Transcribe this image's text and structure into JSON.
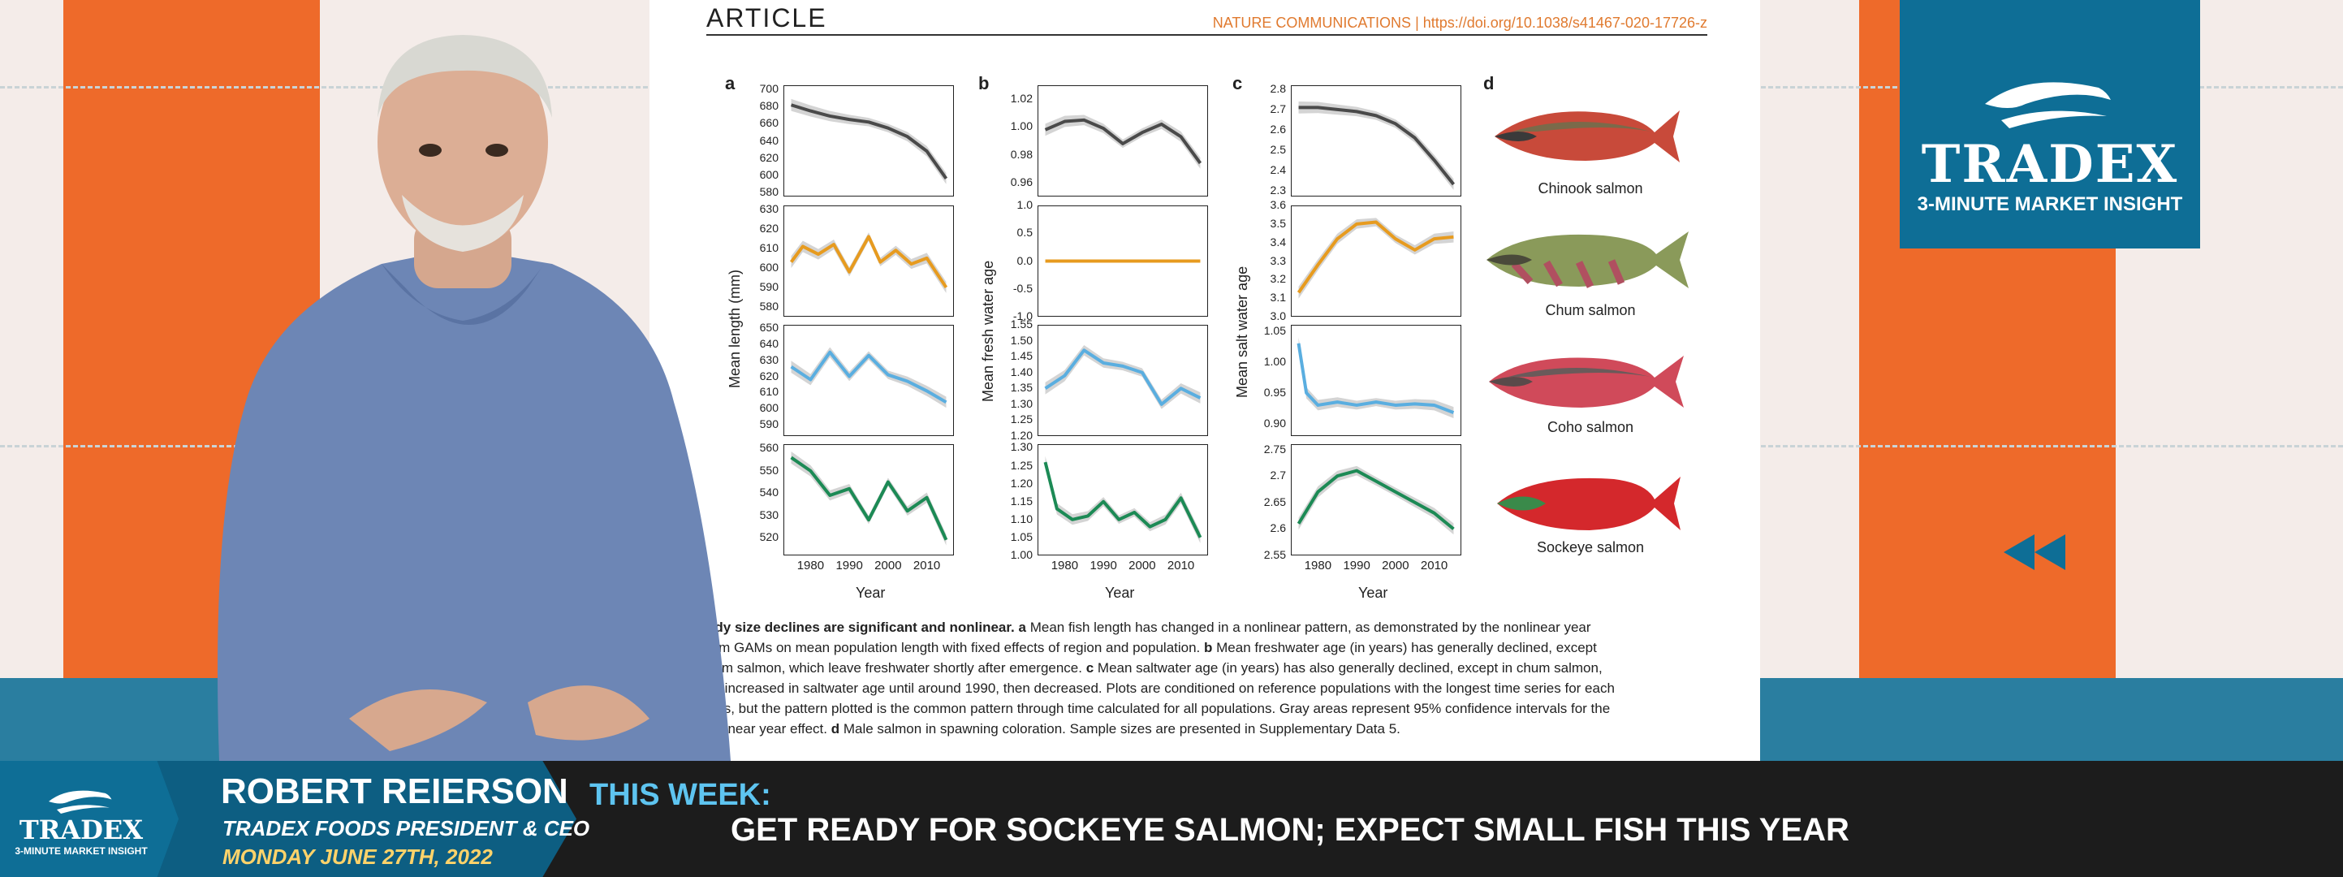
{
  "brand": {
    "name": "TRADEX",
    "tagline": "3-MINUTE MARKET INSIGHT",
    "colors": {
      "blue": "#0e6e96",
      "orange": "#ee6a2a",
      "teal": "#2a7ea0"
    }
  },
  "article": {
    "label": "ARTICLE",
    "journal": "NATURE COMMUNICATIONS | https://doi.org/10.1038/s41467-020-17726-z"
  },
  "figure": {
    "panels": {
      "a": "a",
      "b": "b",
      "c": "c",
      "d": "d"
    },
    "x_title": "Year",
    "y_titles": {
      "a": "Mean length (mm)",
      "b": "Mean fresh water age",
      "c": "Mean salt water age"
    },
    "x_ticks": [
      "1980",
      "1990",
      "2000",
      "2010"
    ],
    "fish": [
      "Chinook salmon",
      "Chum salmon",
      "Coho salmon",
      "Sockeye salmon"
    ],
    "caption_bold": "ody size declines are significant and nonlinear.",
    "caption_a": "a",
    "caption_1": " Mean fish length has changed in a nonlinear pattern, as demonstrated by the nonlinear year",
    "caption_2": "rom GAMs on mean population length with fixed effects of region and population.",
    "caption_b": "b",
    "caption_3": " Mean freshwater age (in years) has generally declined, except",
    "caption_4": "hum salmon, which leave freshwater shortly after emergence.",
    "caption_c": "c",
    "caption_5": " Mean saltwater age (in years) has also generally declined, except in chum salmon,",
    "caption_6": "ch increased in saltwater age until around 1990, then decreased. Plots are conditioned on reference populations with the longest time series for each",
    "caption_7": "cies, but the pattern plotted is the common pattern through time calculated for all populations. Gray areas represent 95% confidence intervals for the",
    "caption_8": "onlinear year effect.",
    "caption_d": "d",
    "caption_9": " Male salmon in spawning coloration. Sample sizes are presented in Supplementary Data 5."
  },
  "chart_data": [
    {
      "type": "line",
      "panel": "a",
      "row": 1,
      "color": "#4a4a4a",
      "ylim": [
        575,
        705
      ],
      "yticks": [
        580,
        600,
        620,
        640,
        660,
        680,
        700
      ],
      "x": [
        1975,
        1980,
        1985,
        1990,
        1995,
        2000,
        2005,
        2010,
        2015
      ],
      "y": [
        682,
        675,
        669,
        665,
        662,
        655,
        645,
        628,
        596
      ]
    },
    {
      "type": "line",
      "panel": "a",
      "row": 2,
      "color": "#e79b1f",
      "ylim": [
        575,
        632
      ],
      "yticks": [
        580,
        590,
        600,
        610,
        620,
        630
      ],
      "x": [
        1975,
        1978,
        1982,
        1986,
        1990,
        1995,
        1998,
        2002,
        2006,
        2010,
        2015
      ],
      "y": [
        603,
        611,
        607,
        612,
        598,
        616,
        603,
        609,
        602,
        605,
        590
      ]
    },
    {
      "type": "line",
      "panel": "a",
      "row": 3,
      "color": "#5aaee0",
      "ylim": [
        583,
        652
      ],
      "yticks": [
        590,
        600,
        610,
        620,
        630,
        640,
        650
      ],
      "x": [
        1975,
        1980,
        1985,
        1990,
        1995,
        2000,
        2005,
        2010,
        2015
      ],
      "y": [
        626,
        618,
        635,
        620,
        633,
        621,
        617,
        611,
        604
      ]
    },
    {
      "type": "line",
      "panel": "a",
      "row": 4,
      "color": "#1c8a55",
      "ylim": [
        512,
        562
      ],
      "yticks": [
        520,
        530,
        540,
        550,
        560
      ],
      "x": [
        1975,
        1980,
        1985,
        1990,
        1995,
        2000,
        2005,
        2010,
        2015
      ],
      "y": [
        556,
        550,
        539,
        542,
        528,
        545,
        532,
        538,
        519
      ]
    },
    {
      "type": "line",
      "panel": "b",
      "row": 1,
      "color": "#4a4a4a",
      "ylim": [
        0.95,
        1.03
      ],
      "yticks": [
        0.96,
        0.98,
        1.0,
        1.02
      ],
      "x": [
        1975,
        1980,
        1985,
        1990,
        1995,
        2000,
        2005,
        2010,
        2015
      ],
      "y": [
        0.998,
        1.004,
        1.005,
        0.999,
        0.988,
        0.996,
        1.002,
        0.993,
        0.974
      ]
    },
    {
      "type": "line",
      "panel": "b",
      "row": 2,
      "color": "#e79b1f",
      "ylim": [
        -1.0,
        1.0
      ],
      "yticks": [
        -1.0,
        -0.5,
        0.0,
        0.5,
        1.0
      ],
      "x": [
        1975,
        2015
      ],
      "y": [
        0.0,
        0.0
      ]
    },
    {
      "type": "line",
      "panel": "b",
      "row": 3,
      "color": "#5aaee0",
      "ylim": [
        1.2,
        1.55
      ],
      "yticks": [
        1.2,
        1.25,
        1.3,
        1.35,
        1.4,
        1.45,
        1.5,
        1.55
      ],
      "x": [
        1975,
        1980,
        1985,
        1990,
        1995,
        2000,
        2005,
        2010,
        2015
      ],
      "y": [
        1.35,
        1.39,
        1.47,
        1.43,
        1.42,
        1.4,
        1.3,
        1.35,
        1.32
      ]
    },
    {
      "type": "line",
      "panel": "b",
      "row": 4,
      "color": "#1c8a55",
      "ylim": [
        1.0,
        1.31
      ],
      "yticks": [
        1.0,
        1.05,
        1.1,
        1.15,
        1.2,
        1.25,
        1.3
      ],
      "x": [
        1975,
        1978,
        1982,
        1986,
        1990,
        1994,
        1998,
        2002,
        2006,
        2010,
        2015
      ],
      "y": [
        1.26,
        1.13,
        1.1,
        1.11,
        1.15,
        1.1,
        1.12,
        1.08,
        1.1,
        1.16,
        1.05
      ]
    },
    {
      "type": "line",
      "panel": "c",
      "row": 1,
      "color": "#4a4a4a",
      "ylim": [
        2.27,
        2.82
      ],
      "yticks": [
        2.3,
        2.4,
        2.5,
        2.6,
        2.7,
        2.8
      ],
      "x": [
        1975,
        1980,
        1985,
        1990,
        1995,
        2000,
        2005,
        2010,
        2015
      ],
      "y": [
        2.71,
        2.71,
        2.7,
        2.69,
        2.67,
        2.63,
        2.56,
        2.45,
        2.33
      ]
    },
    {
      "type": "line",
      "panel": "c",
      "row": 2,
      "color": "#e79b1f",
      "ylim": [
        3.0,
        3.6
      ],
      "yticks": [
        3.0,
        3.1,
        3.2,
        3.3,
        3.4,
        3.5,
        3.6
      ],
      "x": [
        1975,
        1980,
        1985,
        1990,
        1995,
        2000,
        2005,
        2010,
        2015
      ],
      "y": [
        3.13,
        3.28,
        3.42,
        3.5,
        3.51,
        3.42,
        3.36,
        3.42,
        3.43
      ]
    },
    {
      "type": "line",
      "panel": "c",
      "row": 3,
      "color": "#5aaee0",
      "ylim": [
        0.88,
        1.06
      ],
      "yticks": [
        0.9,
        0.95,
        1.0,
        1.05
      ],
      "x": [
        1975,
        1977,
        1980,
        1985,
        1990,
        1995,
        2000,
        2005,
        2010,
        2015
      ],
      "y": [
        1.03,
        0.95,
        0.93,
        0.935,
        0.93,
        0.935,
        0.93,
        0.932,
        0.93,
        0.918
      ]
    },
    {
      "type": "line",
      "panel": "c",
      "row": 4,
      "color": "#1c8a55",
      "ylim": [
        2.55,
        2.76
      ],
      "yticks": [
        2.55,
        2.6,
        2.65,
        2.7,
        2.75
      ],
      "x": [
        1975,
        1980,
        1985,
        1990,
        1995,
        2000,
        2005,
        2010,
        2015
      ],
      "y": [
        2.61,
        2.67,
        2.7,
        2.71,
        2.69,
        2.67,
        2.65,
        2.63,
        2.6
      ]
    }
  ],
  "presenter": {
    "name": "ROBERT REIERSON",
    "title": "TRADEX FOODS PRESIDENT & CEO",
    "date": "MONDAY JUNE 27TH, 2022"
  },
  "ticker": {
    "label": "THIS WEEK:",
    "headline": "GET READY FOR SOCKEYE SALMON; EXPECT SMALL FISH THIS YEAR"
  },
  "controls": {
    "rewind_icon": "rewind-icon"
  }
}
